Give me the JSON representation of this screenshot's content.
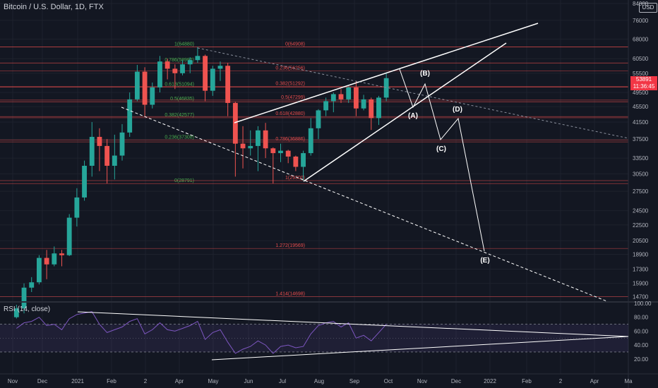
{
  "header": {
    "title": "Bitcoin / U.S. Dollar, 1D, FTX",
    "currency": "USD",
    "rsi_label": "RSI (14, close)",
    "last_price": "53891",
    "countdown": "11:36:45"
  },
  "colors": {
    "background": "#131722",
    "up": "#26a69a",
    "down": "#ef5350",
    "fib_line": "#e84c4c",
    "fib_text_green": "#4caf50",
    "fib_text_red": "#e84c4c",
    "trendline": "#ffffff",
    "rsi_line": "#7e57c2",
    "rsi_band": "rgba(126,87,194,0.12)",
    "grid": "#1e222d"
  },
  "chart_data": {
    "type": "candlestick",
    "title": "Bitcoin / U.S. Dollar, 1D, FTX",
    "y_scale": "log",
    "y_ticks": [
      "84000",
      "76000",
      "68000",
      "60500",
      "55500",
      "49500",
      "45500",
      "41500",
      "37500",
      "33500",
      "30500",
      "27500",
      "24500",
      "22500",
      "20500",
      "18900",
      "17300",
      "15900",
      "14700"
    ],
    "x_ticks": [
      "Nov",
      "Dec",
      "2021",
      "Feb",
      "2",
      "Apr",
      "May",
      "Jun",
      "Jul",
      "Aug",
      "Sep",
      "Oct",
      "Nov",
      "Dec",
      "2022",
      "Feb",
      "2",
      "Apr",
      "Ma"
    ],
    "fib_levels": [
      {
        "label": "1(64880)",
        "price": 64880
      },
      {
        "label": "0.786(58992)",
        "price": 58992
      },
      {
        "label": "0.618(51094)",
        "price": 51094
      },
      {
        "label": "0.5(46835)",
        "price": 46835
      },
      {
        "label": "0.382(42577)",
        "price": 42577
      },
      {
        "label": "0.236(37308)",
        "price": 37308
      },
      {
        "label": "0(28791)",
        "price": 28791
      }
    ],
    "fib_extensions": [
      {
        "label": "0(64908)",
        "price": 64908
      },
      {
        "label": "0.236(56256)",
        "price": 56256
      },
      {
        "label": "0.382(51292)",
        "price": 51292
      },
      {
        "label": "0.5(47299)",
        "price": 47299
      },
      {
        "label": "0.618(42880)",
        "price": 42880
      },
      {
        "label": "0.786(36886)",
        "price": 36886
      },
      {
        "label": "1(29300)",
        "price": 29300
      },
      {
        "label": "1.272(19569)",
        "price": 19569
      },
      {
        "label": "1.414(14698)",
        "price": 14698
      }
    ],
    "wave_labels": [
      "(A)",
      "(B)",
      "(C)",
      "(D)",
      "(E)"
    ],
    "candles_weekly_approx": [
      {
        "date": "2020-10-26",
        "o": 13000,
        "h": 14000,
        "l": 12900,
        "c": 13700
      },
      {
        "date": "2020-11-02",
        "o": 13700,
        "h": 15900,
        "l": 13300,
        "c": 15500
      },
      {
        "date": "2020-11-09",
        "o": 15500,
        "h": 16500,
        "l": 15100,
        "c": 16000
      },
      {
        "date": "2020-11-16",
        "o": 16000,
        "h": 18800,
        "l": 15800,
        "c": 18500
      },
      {
        "date": "2020-11-23",
        "o": 18500,
        "h": 19400,
        "l": 16300,
        "c": 17800
      },
      {
        "date": "2020-11-30",
        "o": 17800,
        "h": 19800,
        "l": 17600,
        "c": 19000
      },
      {
        "date": "2020-12-07",
        "o": 19000,
        "h": 19400,
        "l": 17600,
        "c": 18800
      },
      {
        "date": "2020-12-14",
        "o": 18800,
        "h": 24000,
        "l": 18700,
        "c": 23500
      },
      {
        "date": "2020-12-21",
        "o": 23500,
        "h": 28000,
        "l": 22300,
        "c": 26500
      },
      {
        "date": "2020-12-28",
        "o": 26500,
        "h": 33000,
        "l": 26000,
        "c": 32000
      },
      {
        "date": "2021-01-04",
        "o": 32000,
        "h": 41500,
        "l": 30000,
        "c": 38000
      },
      {
        "date": "2021-01-11",
        "o": 38000,
        "h": 40000,
        "l": 31000,
        "c": 36000
      },
      {
        "date": "2021-01-18",
        "o": 36000,
        "h": 37500,
        "l": 28800,
        "c": 32000
      },
      {
        "date": "2021-01-25",
        "o": 32000,
        "h": 38500,
        "l": 29500,
        "c": 34000
      },
      {
        "date": "2021-02-01",
        "o": 34000,
        "h": 41000,
        "l": 33000,
        "c": 39000
      },
      {
        "date": "2021-02-08",
        "o": 39000,
        "h": 49500,
        "l": 38000,
        "c": 47500
      },
      {
        "date": "2021-02-15",
        "o": 47500,
        "h": 58300,
        "l": 47000,
        "c": 56000
      },
      {
        "date": "2021-02-22",
        "o": 56000,
        "h": 57500,
        "l": 43000,
        "c": 46000
      },
      {
        "date": "2021-03-01",
        "o": 46000,
        "h": 52500,
        "l": 45000,
        "c": 51000
      },
      {
        "date": "2021-03-08",
        "o": 51000,
        "h": 61500,
        "l": 49500,
        "c": 59500
      },
      {
        "date": "2021-03-15",
        "o": 59500,
        "h": 60500,
        "l": 53500,
        "c": 57000
      },
      {
        "date": "2021-03-22",
        "o": 57000,
        "h": 58500,
        "l": 50500,
        "c": 55500
      },
      {
        "date": "2021-03-29",
        "o": 55500,
        "h": 60000,
        "l": 54800,
        "c": 58500
      },
      {
        "date": "2021-04-05",
        "o": 58500,
        "h": 61000,
        "l": 55500,
        "c": 60000
      },
      {
        "date": "2021-04-12",
        "o": 60000,
        "h": 64880,
        "l": 59000,
        "c": 61500
      },
      {
        "date": "2021-04-19",
        "o": 61500,
        "h": 62000,
        "l": 47000,
        "c": 50000
      },
      {
        "date": "2021-04-26",
        "o": 50000,
        "h": 58000,
        "l": 48500,
        "c": 57000
      },
      {
        "date": "2021-05-03",
        "o": 57000,
        "h": 59500,
        "l": 53000,
        "c": 58000
      },
      {
        "date": "2021-05-10",
        "o": 58000,
        "h": 59000,
        "l": 43000,
        "c": 46500
      },
      {
        "date": "2021-05-17",
        "o": 46500,
        "h": 46800,
        "l": 30000,
        "c": 36500
      },
      {
        "date": "2021-05-24",
        "o": 36500,
        "h": 40500,
        "l": 31500,
        "c": 35500
      },
      {
        "date": "2021-05-31",
        "o": 35500,
        "h": 39500,
        "l": 34000,
        "c": 36000
      },
      {
        "date": "2021-06-07",
        "o": 36000,
        "h": 40500,
        "l": 31000,
        "c": 39500
      },
      {
        "date": "2021-06-14",
        "o": 39500,
        "h": 41300,
        "l": 33500,
        "c": 35500
      },
      {
        "date": "2021-06-21",
        "o": 35500,
        "h": 35700,
        "l": 28800,
        "c": 34500
      },
      {
        "date": "2021-06-28",
        "o": 34500,
        "h": 36500,
        "l": 32700,
        "c": 35000
      },
      {
        "date": "2021-07-05",
        "o": 35000,
        "h": 35200,
        "l": 32500,
        "c": 33800
      },
      {
        "date": "2021-07-12",
        "o": 33800,
        "h": 34000,
        "l": 31000,
        "c": 31800
      },
      {
        "date": "2021-07-19",
        "o": 31800,
        "h": 35000,
        "l": 29300,
        "c": 34500
      },
      {
        "date": "2021-07-26",
        "o": 34500,
        "h": 42500,
        "l": 34000,
        "c": 40000
      },
      {
        "date": "2021-08-02",
        "o": 40000,
        "h": 44800,
        "l": 37500,
        "c": 44500
      },
      {
        "date": "2021-08-09",
        "o": 44500,
        "h": 48000,
        "l": 43000,
        "c": 47000
      },
      {
        "date": "2021-08-16",
        "o": 47000,
        "h": 49500,
        "l": 44000,
        "c": 49000
      },
      {
        "date": "2021-08-23",
        "o": 49000,
        "h": 50500,
        "l": 46500,
        "c": 47500
      },
      {
        "date": "2021-08-30",
        "o": 47500,
        "h": 51292,
        "l": 46500,
        "c": 51000
      },
      {
        "date": "2021-09-06",
        "o": 51000,
        "h": 52800,
        "l": 43000,
        "c": 45000
      },
      {
        "date": "2021-09-13",
        "o": 45000,
        "h": 48800,
        "l": 44500,
        "c": 47500
      },
      {
        "date": "2021-09-20",
        "o": 47500,
        "h": 48000,
        "l": 39600,
        "c": 42500
      },
      {
        "date": "2021-09-27",
        "o": 42500,
        "h": 48500,
        "l": 40800,
        "c": 48000
      },
      {
        "date": "2021-10-04",
        "o": 48000,
        "h": 55500,
        "l": 47000,
        "c": 53891
      }
    ],
    "rsi": {
      "label": "RSI (14, close)",
      "ticks": [
        100.0,
        80.0,
        60.0,
        40.0,
        20.0
      ],
      "bands": [
        70,
        30
      ],
      "values_weekly_approx": [
        64,
        72,
        74,
        80,
        68,
        70,
        62,
        78,
        84,
        86,
        88,
        70,
        58,
        62,
        66,
        74,
        78,
        56,
        62,
        72,
        62,
        60,
        64,
        68,
        74,
        48,
        58,
        62,
        44,
        28,
        34,
        38,
        46,
        40,
        28,
        38,
        40,
        36,
        38,
        56,
        68,
        72,
        74,
        66,
        72,
        50,
        54,
        46,
        58,
        70
      ]
    }
  }
}
